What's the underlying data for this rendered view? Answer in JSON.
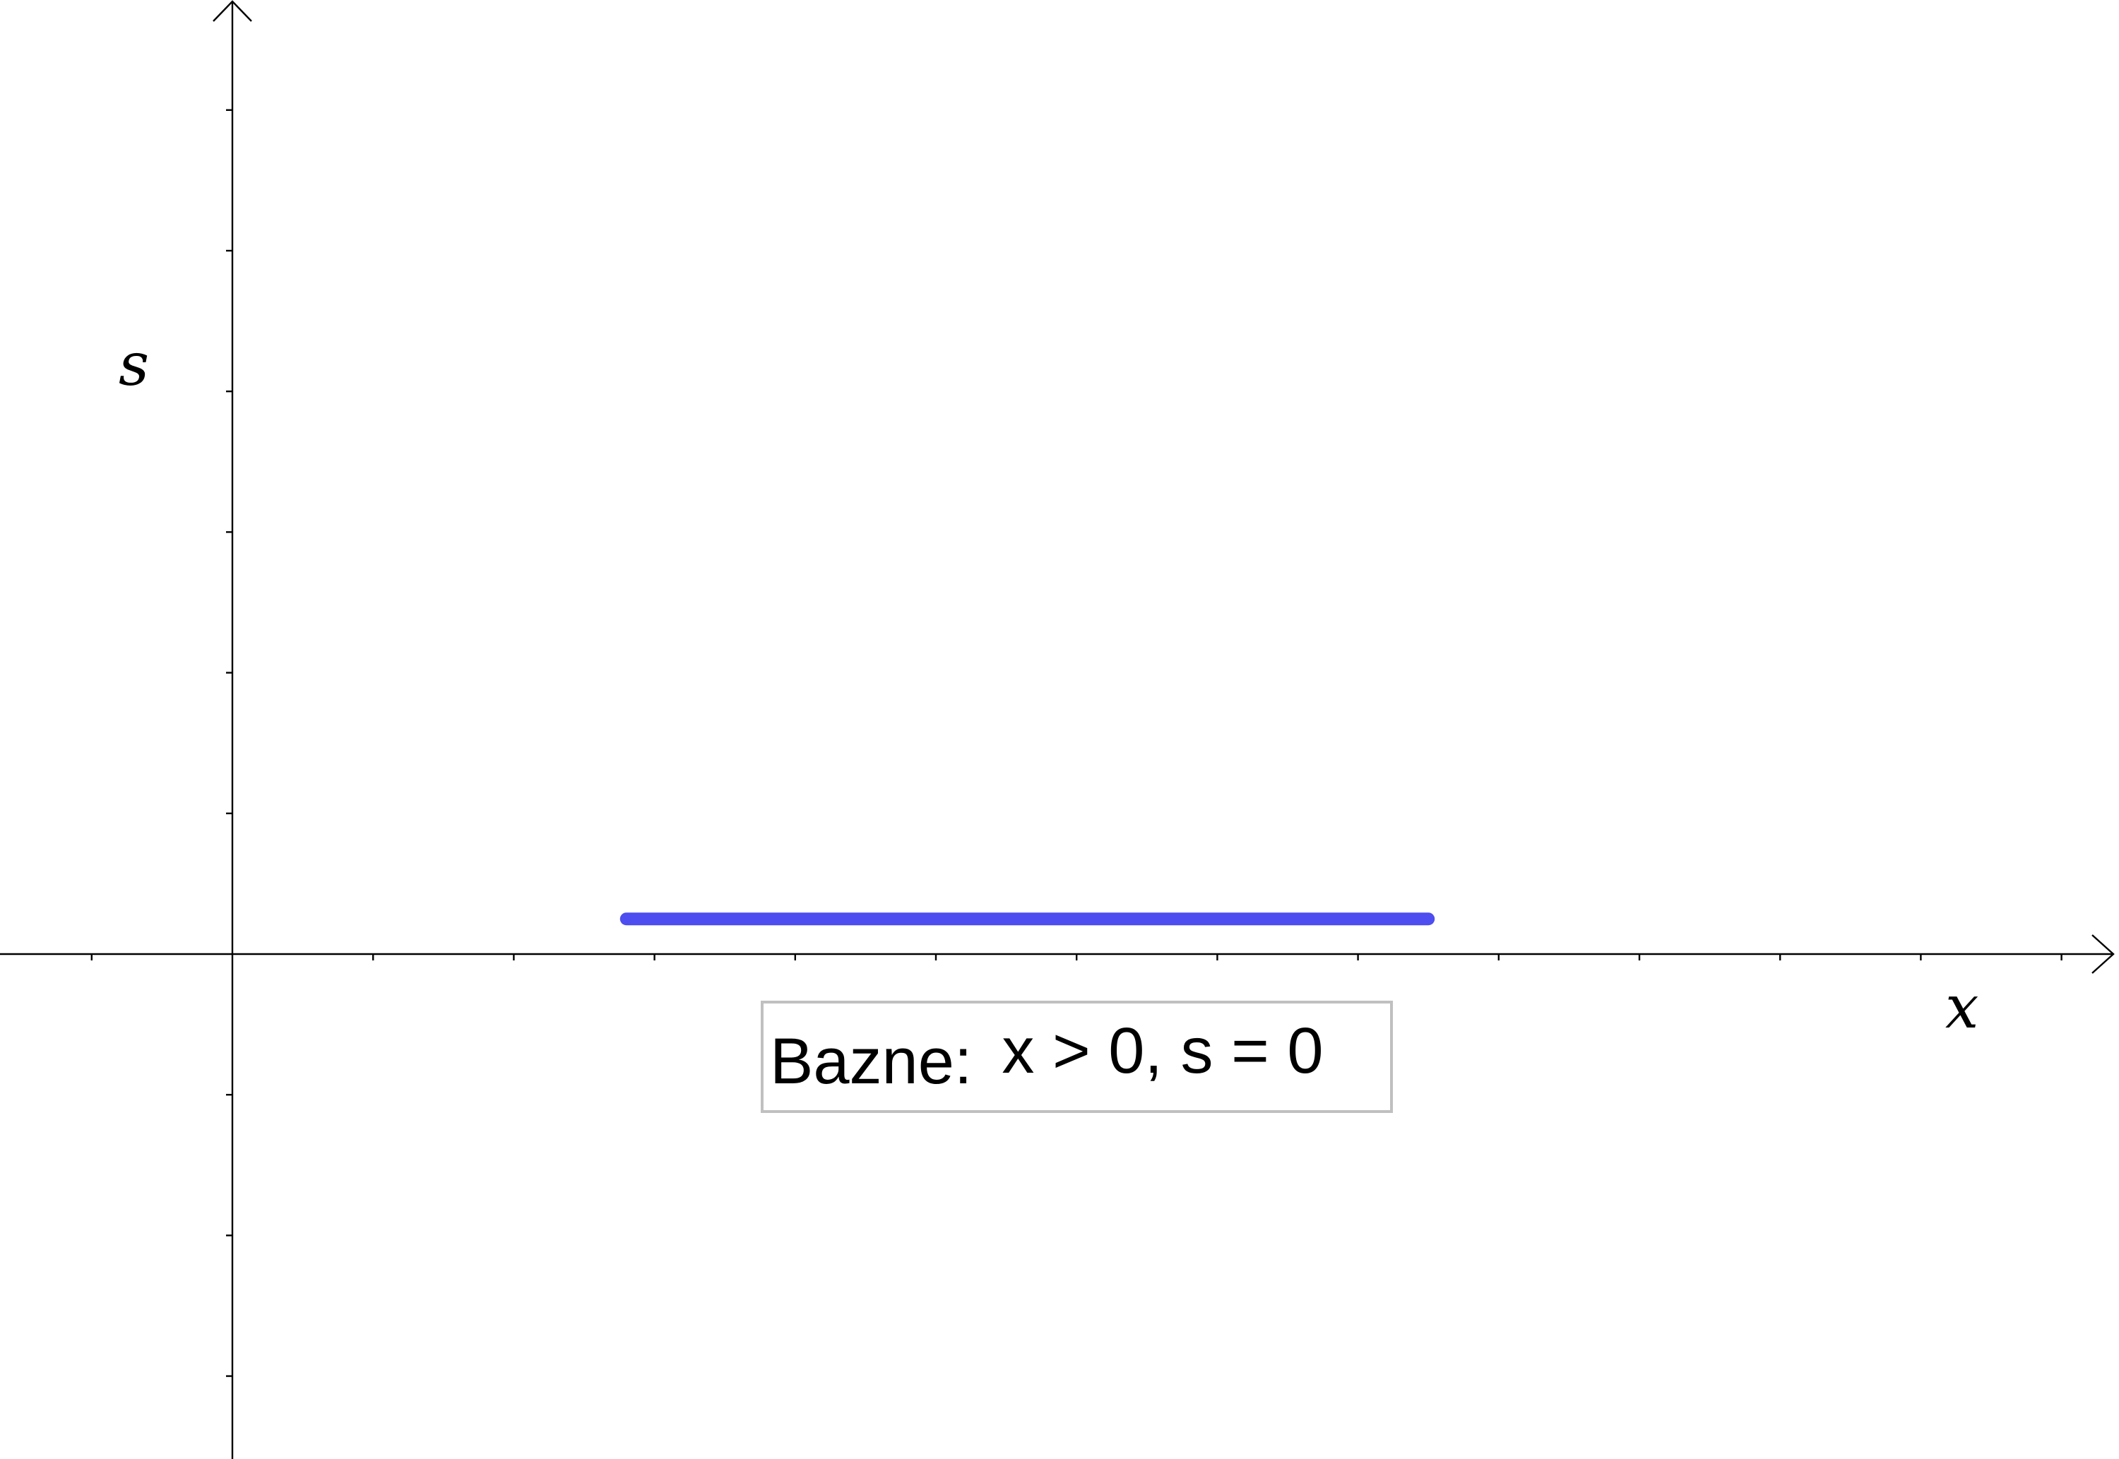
{
  "axes": {
    "x_label": "x",
    "y_label": "s"
  },
  "segment": {
    "color": "#4d4df0",
    "from": 2.8,
    "to": 8.5,
    "s_value": 0.25
  },
  "info_box": {
    "prefix": "Bazne:",
    "math": "x > 0, s = 0"
  },
  "colors": {
    "axis": "#000000",
    "box_border": "#c0c0c0"
  }
}
